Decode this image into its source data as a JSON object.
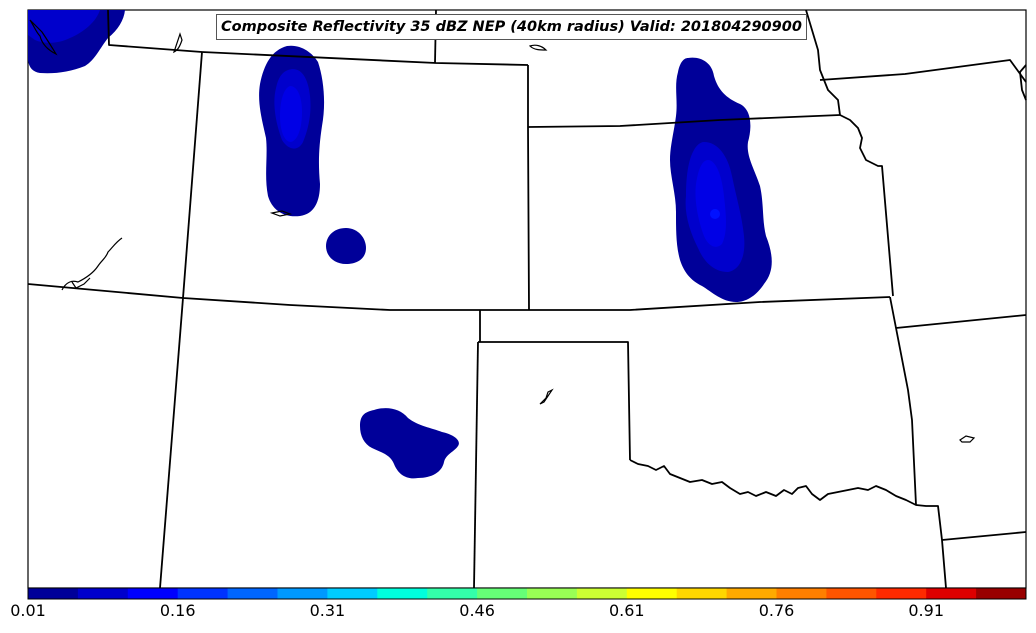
{
  "title": "Composite Reflectivity 35 dBZ NEP (40km radius) Valid: 201804290900",
  "colorbar": {
    "ticks": [
      "0.01",
      "0.16",
      "0.31",
      "0.46",
      "0.61",
      "0.76",
      "0.91"
    ],
    "colors": [
      "#000099",
      "#0000cc",
      "#0000ff",
      "#0033ff",
      "#0066ff",
      "#0099ff",
      "#00ccff",
      "#00ffdd",
      "#33ffaa",
      "#66ff77",
      "#99ff55",
      "#ccff33",
      "#ffff00",
      "#ffd700",
      "#ffaa00",
      "#ff7f00",
      "#ff5500",
      "#ff2a00",
      "#dd0000",
      "#990000"
    ]
  },
  "colors": {
    "nep_low": "#000099",
    "nep_mid": "#0000cc",
    "nep_high": "#0000e6",
    "boundary": "#000000"
  }
}
